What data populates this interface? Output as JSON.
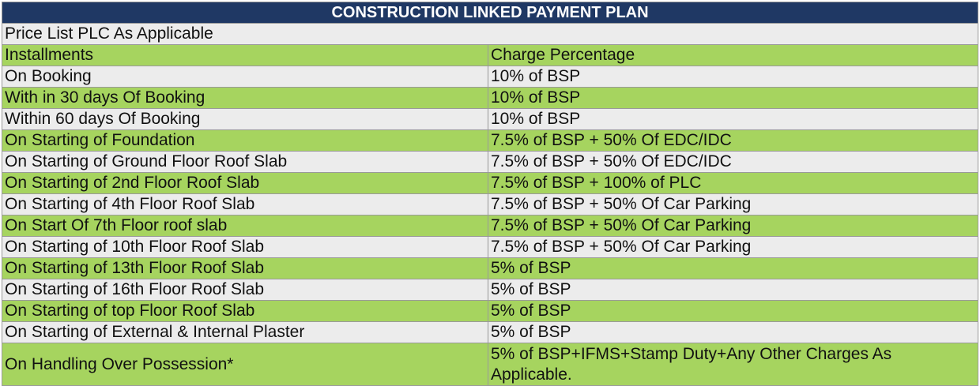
{
  "title": "CONSTRUCTION LINKED PAYMENT PLAN",
  "note": "Price List PLC As Applicable",
  "headers": {
    "installments": "Installments",
    "charge": "Charge Percentage"
  },
  "rows": [
    {
      "installment": "On Booking",
      "charge": "10% of BSP"
    },
    {
      "installment": "With in 30 days Of Booking",
      "charge": "10% of BSP"
    },
    {
      "installment": "Within 60 days Of Booking",
      "charge": "10% of BSP"
    },
    {
      "installment": "On Starting of Foundation",
      "charge": "7.5% of BSP + 50% Of EDC/IDC"
    },
    {
      "installment": "On Starting of Ground Floor Roof Slab",
      "charge": "7.5% of BSP + 50% Of EDC/IDC"
    },
    {
      "installment": "On Starting of 2nd Floor Roof Slab",
      "charge": "7.5% of BSP + 100% of PLC"
    },
    {
      "installment": "On Starting of 4th Floor Roof Slab",
      "charge": "7.5% of BSP + 50% Of Car Parking"
    },
    {
      "installment": "On Start Of 7th Floor roof slab",
      "charge": "7.5% of BSP + 50% Of Car Parking"
    },
    {
      "installment": "On Starting of 10th Floor Roof Slab",
      "charge": "7.5% of BSP + 50% Of Car Parking"
    },
    {
      "installment": "On Starting of 13th Floor Roof Slab",
      "charge": "5% of BSP"
    },
    {
      "installment": "On Starting of 16th Floor Roof Slab",
      "charge": "5% of BSP"
    },
    {
      "installment": "On Starting of top Floor Roof Slab",
      "charge": "5% of BSP"
    },
    {
      "installment": "On Starting of External & Internal Plaster",
      "charge": "5% of BSP"
    },
    {
      "installment": "On Handling Over Possession*",
      "charge": "5% of BSP+IFMS+Stamp Duty+Any Other Charges As Applicable."
    }
  ],
  "colors": {
    "title_bg": "#1f3864",
    "green_row": "#a6d45f",
    "grey_row": "#ececec"
  }
}
